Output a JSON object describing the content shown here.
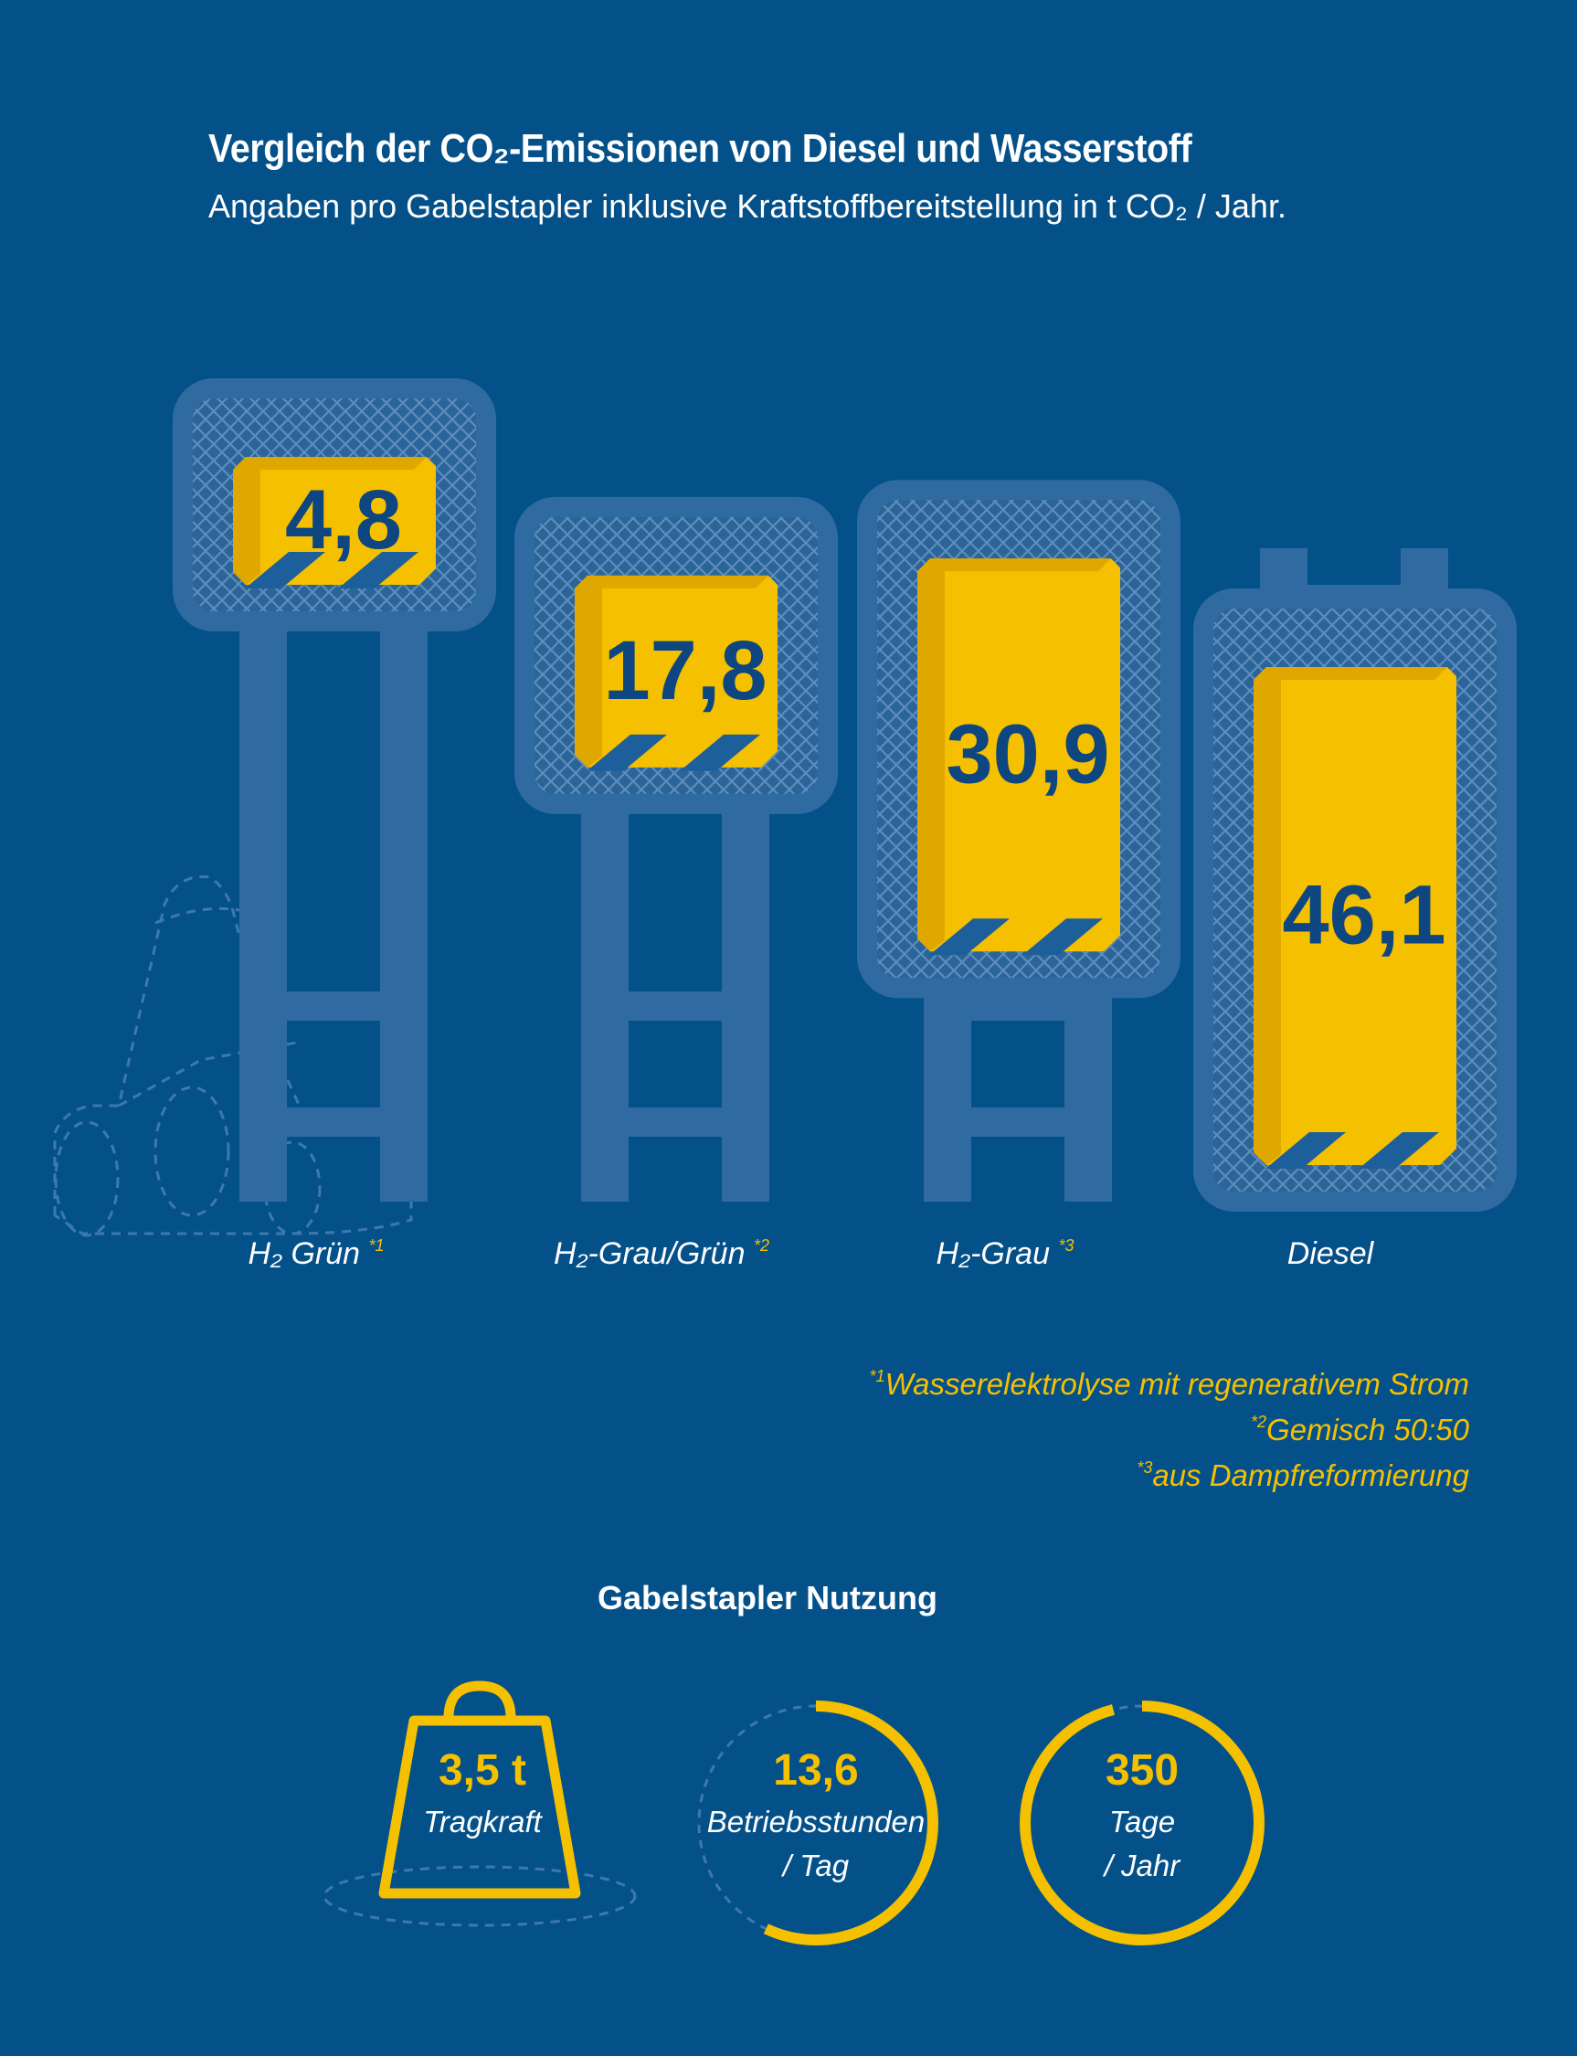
{
  "title": "Vergleich der CO₂-Emissionen von Diesel und Wasserstoff",
  "subtitle": "Angaben pro Gabelstapler inklusive Kraftstoffbereitstellung in t CO₂ / Jahr.",
  "chart_data": {
    "type": "bar",
    "categories": [
      "H₂ Grün",
      "H₂-Grau/Grün",
      "H₂-Grau",
      "Diesel"
    ],
    "category_marks": [
      "*1",
      "*2",
      "*3",
      ""
    ],
    "values": [
      4.8,
      17.8,
      30.9,
      46.1
    ],
    "value_labels": [
      "4,8",
      "17,8",
      "30,9",
      "46,1"
    ],
    "unit": "t CO₂ / Jahr",
    "orientation": "vertical, bars hang from top (lower position = higher value)",
    "legend": "none",
    "grid": false
  },
  "footnotes": [
    {
      "mark": "*1",
      "text": "Wasserelektrolyse mit regenerativem Strom"
    },
    {
      "mark": "*2",
      "text": "Gemisch 50:50"
    },
    {
      "mark": "*3",
      "text": "aus Dampfreformierung"
    }
  ],
  "usage": {
    "title": "Gabelstapler Nutzung",
    "stats": [
      {
        "value": "3,5 t",
        "label1": "Tragkraft",
        "label2": "",
        "icon": "weight-icon"
      },
      {
        "value": "13,6",
        "label1": "Betriebsstunden",
        "label2": "/ Tag",
        "icon": "hours-ring-icon",
        "fraction": 0.57
      },
      {
        "value": "350",
        "label1": "Tage",
        "label2": "/ Jahr",
        "icon": "days-ring-icon",
        "fraction": 0.96
      }
    ]
  },
  "colors": {
    "background": "#04518a",
    "mast": "#2f6ba0",
    "bar": "#f5c000",
    "bar_shade": "#e0a700",
    "value_text": "#0d4680",
    "accent": "#f5c000"
  }
}
